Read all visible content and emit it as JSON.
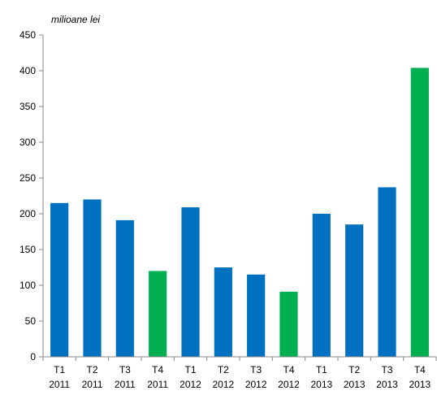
{
  "chart_data": {
    "type": "bar",
    "unit_label": "milioane lei",
    "categories": [
      [
        "T1",
        "2011"
      ],
      [
        "T2",
        "2011"
      ],
      [
        "T3",
        "2011"
      ],
      [
        "T4",
        "2011"
      ],
      [
        "T1",
        "2012"
      ],
      [
        "T2",
        "2012"
      ],
      [
        "T3",
        "2012"
      ],
      [
        "T4",
        "2012"
      ],
      [
        "T1",
        "2013"
      ],
      [
        "T2",
        "2013"
      ],
      [
        "T3",
        "2013"
      ],
      [
        "T4",
        "2013"
      ]
    ],
    "values": [
      215,
      220,
      191,
      120,
      209,
      125,
      115,
      91,
      200,
      185,
      237,
      404
    ],
    "highlight": [
      false,
      false,
      false,
      true,
      false,
      false,
      false,
      true,
      false,
      false,
      false,
      true
    ],
    "colors": {
      "default": "#0070c0",
      "highlight": "#00b050"
    },
    "ylim": [
      0,
      450
    ],
    "yticks": [
      0,
      50,
      100,
      150,
      200,
      250,
      300,
      350,
      400,
      450
    ],
    "grid": false,
    "legend": "none"
  }
}
